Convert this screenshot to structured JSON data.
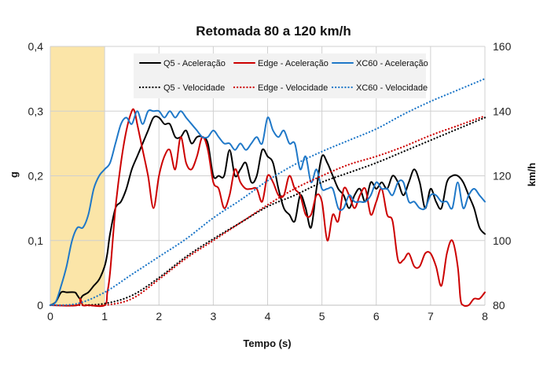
{
  "chart_data": {
    "type": "line",
    "title": "Retomada 80 a 120 km/h",
    "xlabel": "Tempo (s)",
    "ylabel": "g",
    "y2label": "km/h",
    "xlim": [
      0,
      8
    ],
    "ylim": [
      0,
      0.4
    ],
    "y2lim": [
      80,
      160
    ],
    "x_ticks": [
      "0",
      "1",
      "2",
      "3",
      "4",
      "5",
      "6",
      "7",
      "8"
    ],
    "y_ticks": [
      "0",
      "0,1",
      "0,2",
      "0,3",
      "0,4"
    ],
    "y2_ticks": [
      "80",
      "100",
      "120",
      "140",
      "160"
    ],
    "highlight_band": {
      "x_start": 0,
      "x_end": 1,
      "color": "#fbe5a8"
    },
    "grid": {
      "vertical": true,
      "horizontal": true
    },
    "legend_position": "top",
    "series": [
      {
        "name": "Q5 - Aceleração",
        "axis": "left",
        "color": "#000000",
        "style": "solid",
        "x": [
          0,
          0.1,
          0.2,
          0.3,
          0.45,
          0.5,
          0.55,
          0.6,
          0.7,
          0.8,
          0.9,
          1.0,
          1.05,
          1.1,
          1.2,
          1.3,
          1.4,
          1.5,
          1.6,
          1.7,
          1.8,
          1.9,
          2.0,
          2.1,
          2.2,
          2.3,
          2.4,
          2.5,
          2.6,
          2.7,
          2.8,
          2.9,
          3.0,
          3.1,
          3.2,
          3.3,
          3.4,
          3.5,
          3.6,
          3.7,
          3.8,
          3.9,
          4.0,
          4.1,
          4.2,
          4.3,
          4.4,
          4.5,
          4.6,
          4.7,
          4.8,
          4.9,
          5.0,
          5.1,
          5.2,
          5.3,
          5.4,
          5.5,
          5.6,
          5.7,
          5.8,
          5.9,
          6.0,
          6.1,
          6.2,
          6.3,
          6.4,
          6.5,
          6.6,
          6.7,
          6.8,
          6.9,
          7.0,
          7.1,
          7.2,
          7.3,
          7.4,
          7.5,
          7.6,
          7.7,
          7.8,
          7.9,
          8.0
        ],
        "values": [
          0,
          0.005,
          0.02,
          0.02,
          0.02,
          0.015,
          0.01,
          0.015,
          0.02,
          0.03,
          0.04,
          0.06,
          0.08,
          0.11,
          0.15,
          0.16,
          0.18,
          0.21,
          0.23,
          0.25,
          0.27,
          0.29,
          0.29,
          0.28,
          0.28,
          0.26,
          0.26,
          0.27,
          0.25,
          0.26,
          0.26,
          0.25,
          0.2,
          0.2,
          0.2,
          0.24,
          0.2,
          0.21,
          0.22,
          0.19,
          0.2,
          0.24,
          0.23,
          0.22,
          0.18,
          0.15,
          0.14,
          0.13,
          0.17,
          0.15,
          0.12,
          0.18,
          0.23,
          0.22,
          0.2,
          0.18,
          0.17,
          0.15,
          0.17,
          0.18,
          0.16,
          0.19,
          0.18,
          0.19,
          0.18,
          0.2,
          0.19,
          0.17,
          0.19,
          0.21,
          0.19,
          0.15,
          0.18,
          0.16,
          0.15,
          0.19,
          0.2,
          0.2,
          0.19,
          0.17,
          0.15,
          0.12,
          0.11
        ]
      },
      {
        "name": "Edge - Aceleração",
        "axis": "left",
        "color": "#cc0000",
        "style": "solid",
        "x": [
          0,
          0.5,
          0.55,
          0.6,
          0.7,
          1.0,
          1.05,
          1.1,
          1.2,
          1.3,
          1.4,
          1.5,
          1.55,
          1.6,
          1.7,
          1.8,
          1.9,
          2.0,
          2.1,
          2.2,
          2.3,
          2.4,
          2.5,
          2.6,
          2.7,
          2.8,
          2.9,
          3.0,
          3.1,
          3.2,
          3.3,
          3.4,
          3.5,
          3.6,
          3.7,
          3.8,
          3.9,
          4.0,
          4.1,
          4.2,
          4.3,
          4.4,
          4.5,
          4.6,
          4.7,
          4.8,
          4.9,
          5.0,
          5.1,
          5.2,
          5.3,
          5.4,
          5.5,
          5.6,
          5.7,
          5.8,
          5.9,
          6.0,
          6.1,
          6.2,
          6.3,
          6.4,
          6.5,
          6.6,
          6.7,
          6.8,
          6.9,
          7.0,
          7.1,
          7.2,
          7.3,
          7.4,
          7.5,
          7.55,
          7.6,
          7.7,
          7.8,
          7.9,
          8.0
        ],
        "values": [
          0,
          0,
          0.01,
          0,
          0,
          0,
          0.02,
          0.05,
          0.15,
          0.22,
          0.27,
          0.3,
          0.3,
          0.28,
          0.24,
          0.2,
          0.15,
          0.2,
          0.23,
          0.24,
          0.21,
          0.26,
          0.22,
          0.21,
          0.23,
          0.26,
          0.24,
          0.19,
          0.18,
          0.15,
          0.17,
          0.21,
          0.19,
          0.18,
          0.18,
          0.18,
          0.16,
          0.2,
          0.19,
          0.17,
          0.17,
          0.2,
          0.18,
          0.17,
          0.14,
          0.14,
          0.17,
          0.16,
          0.1,
          0.14,
          0.13,
          0.18,
          0.17,
          0.15,
          0.17,
          0.18,
          0.14,
          0.16,
          0.18,
          0.14,
          0.13,
          0.07,
          0.07,
          0.08,
          0.06,
          0.06,
          0.08,
          0.08,
          0.06,
          0.03,
          0.08,
          0.1,
          0.06,
          0.01,
          0,
          0,
          0.01,
          0.01,
          0.02
        ]
      },
      {
        "name": "XC60 - Aceleração",
        "axis": "left",
        "color": "#1f78c8",
        "style": "solid",
        "x": [
          0,
          0.1,
          0.2,
          0.3,
          0.4,
          0.5,
          0.6,
          0.7,
          0.8,
          0.9,
          1.0,
          1.1,
          1.2,
          1.3,
          1.4,
          1.5,
          1.6,
          1.7,
          1.8,
          1.9,
          2.0,
          2.1,
          2.2,
          2.3,
          2.4,
          2.5,
          2.6,
          2.7,
          2.8,
          2.9,
          3.0,
          3.1,
          3.2,
          3.3,
          3.4,
          3.5,
          3.6,
          3.7,
          3.8,
          3.9,
          4.0,
          4.1,
          4.2,
          4.3,
          4.4,
          4.5,
          4.6,
          4.7,
          4.8,
          4.9,
          5.0,
          5.1,
          5.2,
          5.3,
          5.4,
          5.5,
          5.6,
          5.7,
          5.8,
          5.9,
          6.0,
          6.1,
          6.2,
          6.3,
          6.4,
          6.5,
          6.6,
          6.7,
          6.8,
          6.9,
          7.0,
          7.1,
          7.2,
          7.3,
          7.4,
          7.5,
          7.6,
          7.7,
          7.8,
          7.9,
          8.0
        ],
        "values": [
          0,
          0.005,
          0.03,
          0.06,
          0.1,
          0.12,
          0.12,
          0.14,
          0.18,
          0.2,
          0.21,
          0.22,
          0.25,
          0.28,
          0.29,
          0.28,
          0.3,
          0.28,
          0.3,
          0.3,
          0.3,
          0.29,
          0.3,
          0.29,
          0.3,
          0.29,
          0.28,
          0.27,
          0.26,
          0.26,
          0.27,
          0.26,
          0.25,
          0.25,
          0.24,
          0.25,
          0.24,
          0.25,
          0.26,
          0.25,
          0.29,
          0.27,
          0.26,
          0.27,
          0.25,
          0.25,
          0.21,
          0.23,
          0.19,
          0.21,
          0.18,
          0.18,
          0.18,
          0.15,
          0.15,
          0.17,
          0.16,
          0.16,
          0.16,
          0.17,
          0.19,
          0.18,
          0.18,
          0.17,
          0.19,
          0.19,
          0.16,
          0.16,
          0.15,
          0.15,
          0.17,
          0.17,
          0.16,
          0.16,
          0.15,
          0.19,
          0.15,
          0.17,
          0.18,
          0.17,
          0.16
        ]
      },
      {
        "name": "Q5 - Velocidade",
        "axis": "right",
        "color": "#000000",
        "style": "dotted",
        "x": [
          0,
          0.5,
          1.0,
          1.5,
          2.0,
          2.5,
          3.0,
          3.5,
          4.0,
          4.5,
          5.0,
          5.5,
          6.0,
          6.5,
          7.0,
          7.5,
          8.0
        ],
        "values": [
          80,
          80,
          80.5,
          83,
          88.5,
          95,
          100.5,
          105.5,
          110.5,
          114,
          118,
          121,
          124,
          127.5,
          131,
          134.5,
          138
        ]
      },
      {
        "name": "Edge - Velocidade",
        "axis": "right",
        "color": "#cc0000",
        "style": "dotted",
        "x": [
          0,
          0.5,
          1.0,
          1.5,
          2.0,
          2.5,
          3.0,
          3.5,
          4.0,
          4.5,
          5.0,
          5.5,
          6.0,
          6.5,
          7.0,
          7.5,
          8.0
        ],
        "values": [
          80,
          80,
          80,
          82,
          88,
          94.5,
          100,
          105.5,
          111,
          116,
          120,
          123.5,
          126,
          129,
          132.5,
          135.5,
          138.5
        ]
      },
      {
        "name": "XC60 - Velocidade",
        "axis": "right",
        "color": "#1f78c8",
        "style": "dotted",
        "x": [
          0,
          0.5,
          1.0,
          1.5,
          2.0,
          2.5,
          3.0,
          3.5,
          4.0,
          4.5,
          5.0,
          5.5,
          6.0,
          6.5,
          7.0,
          7.5,
          8.0
        ],
        "values": [
          80,
          80.5,
          84,
          89.5,
          95,
          100.5,
          107,
          112.5,
          118.5,
          123.5,
          127.5,
          131,
          134.5,
          139,
          143,
          146.5,
          150
        ]
      }
    ]
  }
}
